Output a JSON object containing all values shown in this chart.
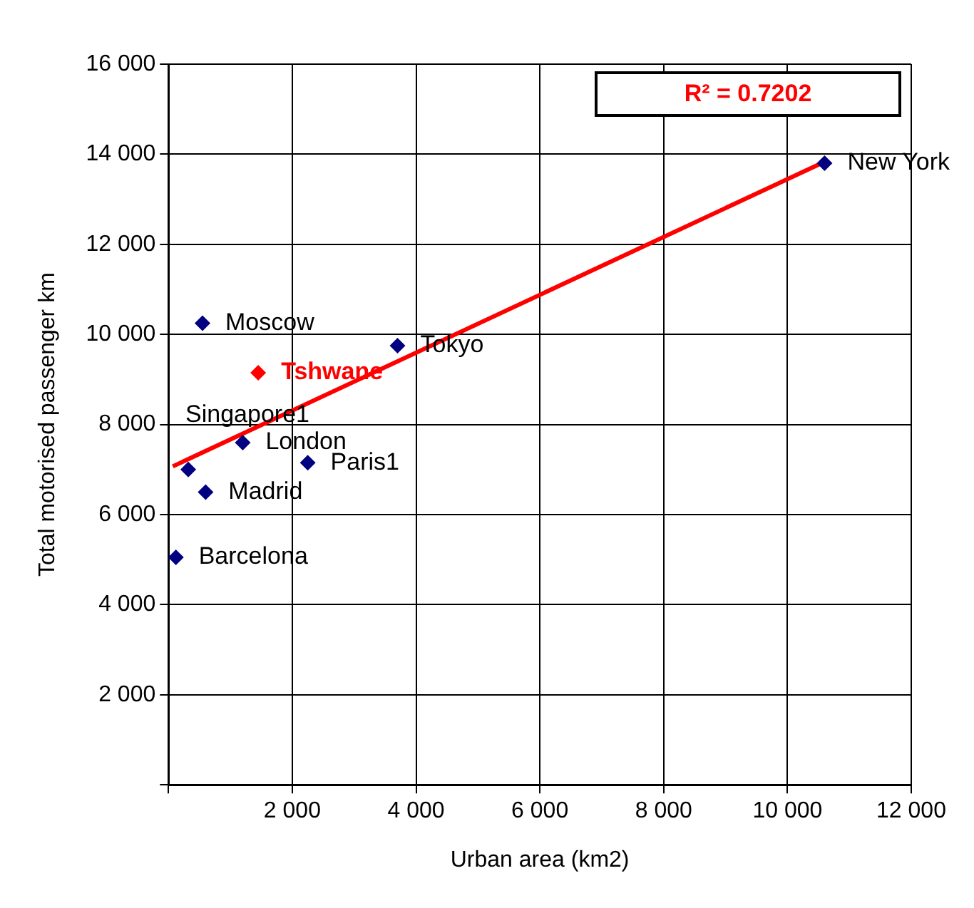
{
  "chart_data": {
    "type": "scatter",
    "xlabel": "Urban area (km2)",
    "ylabel": "Total motorised passenger km",
    "xlim": [
      0,
      12000
    ],
    "ylim": [
      0,
      16000
    ],
    "xticks": [
      {
        "value": 0,
        "label": null
      },
      {
        "value": 2000,
        "label": "2 000"
      },
      {
        "value": 4000,
        "label": "4 000"
      },
      {
        "value": 6000,
        "label": "6 000"
      },
      {
        "value": 8000,
        "label": "8 000"
      },
      {
        "value": 10000,
        "label": "10 000"
      },
      {
        "value": 12000,
        "label": "12 000"
      }
    ],
    "yticks": [
      {
        "value": 0,
        "label": null
      },
      {
        "value": 2000,
        "label": "2 000"
      },
      {
        "value": 4000,
        "label": "4 000"
      },
      {
        "value": 6000,
        "label": "6 000"
      },
      {
        "value": 8000,
        "label": "8 000"
      },
      {
        "value": 10000,
        "label": "10 000"
      },
      {
        "value": 12000,
        "label": "12 000"
      },
      {
        "value": 14000,
        "label": "14 000"
      },
      {
        "value": 16000,
        "label": "16 000"
      }
    ],
    "grid": true,
    "marker": "diamond",
    "series": [
      {
        "color": "#000080",
        "x": [
          10600,
          550,
          3700,
          1450,
          1200,
          2250,
          320,
          600,
          120
        ],
        "values": [
          13800,
          10250,
          9750,
          9150,
          7600,
          7150,
          7000,
          6500,
          5050
        ],
        "colors": [
          "#000080",
          "#000080",
          "#000080",
          "#ff0000",
          "#000080",
          "#000080",
          "#000080",
          "#000080",
          "#000080"
        ]
      },
      {
        "type": "line",
        "color": "#ff0000",
        "marker": "none",
        "x": [
          70,
          10550
        ],
        "values": [
          7070,
          13800
        ]
      }
    ],
    "annotations": [
      {
        "text": "New York",
        "x": 10600,
        "y": 13800
      },
      {
        "text": "Moscow",
        "x": 550,
        "y": 10250
      },
      {
        "text": "Tokyo",
        "x": 3700,
        "y": 9750
      },
      {
        "text": "Tshwane",
        "x": 1450,
        "y": 9150
      },
      {
        "text": "London",
        "x": 1200,
        "y": 7600
      },
      {
        "text": "Paris1",
        "x": 2250,
        "y": 7150
      },
      {
        "text": "Singapore1",
        "x": 320,
        "y": 7000
      },
      {
        "text": "Madrid",
        "x": 600,
        "y": 6500
      },
      {
        "text": "Barcelona",
        "x": 120,
        "y": 5050
      },
      "R² = 0.7202"
    ]
  }
}
